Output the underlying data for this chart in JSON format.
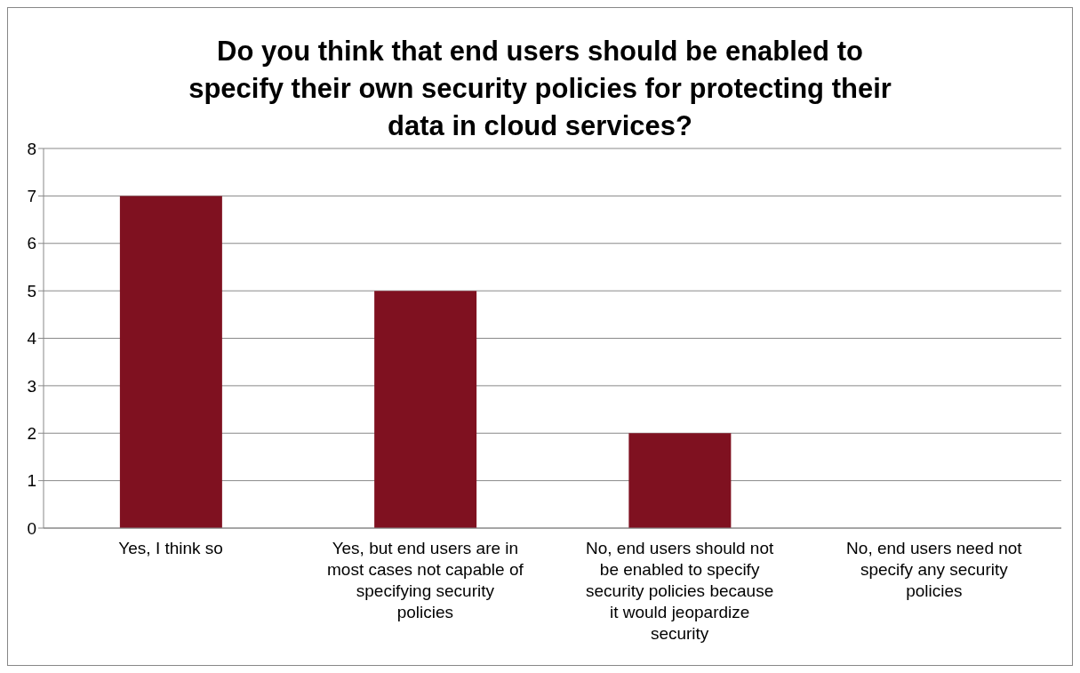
{
  "chart_data": {
    "type": "bar",
    "title": "Do you think that end users should be enabled to specify their own security policies for protecting their data in cloud services?",
    "categories": [
      "Yes, I think so",
      "Yes, but end users are in most cases not capable of specifying security policies",
      "No, end users should not be enabled to specify security policies because it would jeopardize security",
      "No, end users need not specify any security policies"
    ],
    "values": [
      7,
      5,
      2,
      0
    ],
    "color": "#7f1120",
    "ylim": [
      0,
      8
    ],
    "yticks": [
      0,
      1,
      2,
      3,
      4,
      5,
      6,
      7,
      8
    ],
    "grid": "y",
    "legend": false
  }
}
